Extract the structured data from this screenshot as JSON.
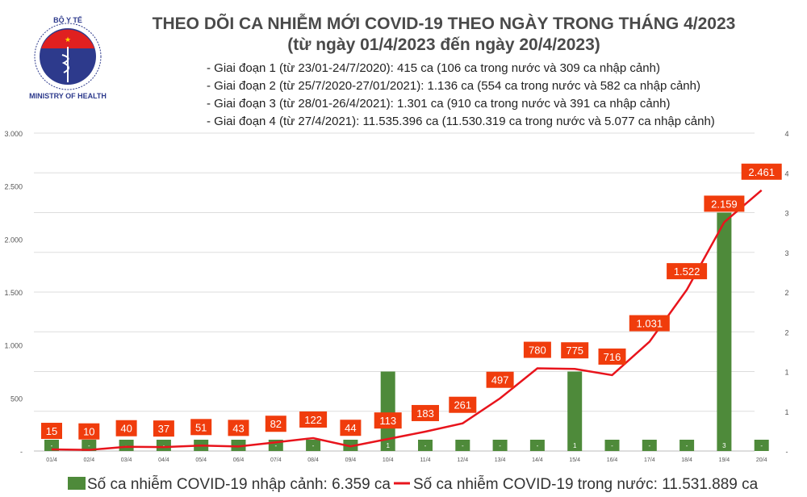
{
  "logo": {
    "top_text": "BỘ Y TẾ",
    "bottom_text": "MINISTRY OF HEALTH"
  },
  "header": {
    "title": "THEO DÕI CA NHIỄM MỚI COVID-19 THEO NGÀY TRONG THÁNG 4/2023",
    "subtitle": "(từ ngày 01/4/2023 đến ngày 20/4/2023)",
    "notes": [
      "- Giai đoạn 1 (từ 23/01-24/7/2020): 415 ca (106 ca trong nước và 309 ca nhập cảnh)",
      "- Giai đoạn 2 (từ 25/7/2020-27/01/2021): 1.136 ca (554 ca trong nước và 582 ca nhập cảnh)",
      "- Giai đoạn 3 (từ 28/01-26/4/2021): 1.301 ca (910 ca trong nước và 391 ca nhập cảnh)",
      "- Giai đoạn 4 (từ 27/4/2021): 11.535.396 ca (11.530.319 ca trong nước và 5.077 ca nhập cảnh)"
    ]
  },
  "chart_data": {
    "type": "bar+line",
    "categories": [
      "01/4",
      "02/4",
      "03/4",
      "04/4",
      "05/4",
      "06/4",
      "07/4",
      "08/4",
      "09/4",
      "10/4",
      "11/4",
      "12/4",
      "13/4",
      "14/4",
      "15/4",
      "16/4",
      "17/4",
      "18/4",
      "19/4",
      "20/4"
    ],
    "series": [
      {
        "name": "Số ca nhiễm COVID-19 nhập cảnh: 6.359 ca",
        "type": "bar",
        "axis": "right",
        "color": "#4e8a3a",
        "values": [
          0,
          0,
          0,
          0,
          0,
          0,
          0,
          0,
          0,
          1,
          0,
          0,
          0,
          0,
          1,
          0,
          0,
          0,
          3,
          0
        ],
        "labels": [
          "-",
          "-",
          "-",
          "-",
          "-",
          "-",
          "-",
          "-",
          "-",
          "1",
          "-",
          "-",
          "-",
          "-",
          "1",
          "-",
          "-",
          "-",
          "3",
          "-"
        ]
      },
      {
        "name": "Số ca nhiễm COVID-19 trong nước: 11.531.889 ca",
        "type": "line",
        "axis": "left",
        "color": "#e8141c",
        "label_color": "#f03c0c",
        "values": [
          15,
          10,
          40,
          37,
          51,
          43,
          82,
          122,
          44,
          113,
          183,
          261,
          497,
          780,
          775,
          716,
          1031,
          1522,
          2159,
          2461
        ],
        "labels": [
          "15",
          "10",
          "40",
          "37",
          "51",
          "43",
          "82",
          "122",
          "44",
          "113",
          "183",
          "261",
          "497",
          "780",
          "775",
          "716",
          "1.031",
          "1.522",
          "2.159",
          "2.461"
        ]
      }
    ],
    "left_axis": {
      "range": [
        0,
        3000
      ],
      "ticks": [
        "-",
        "500",
        "1.000",
        "1.500",
        "2.000",
        "2.500",
        "3.000"
      ]
    },
    "right_axis": {
      "range": [
        0,
        4
      ],
      "ticks": [
        "-",
        "1",
        "1",
        "2",
        "2",
        "3",
        "3",
        "4",
        "4"
      ]
    },
    "grid": true,
    "legend": "bottom"
  }
}
